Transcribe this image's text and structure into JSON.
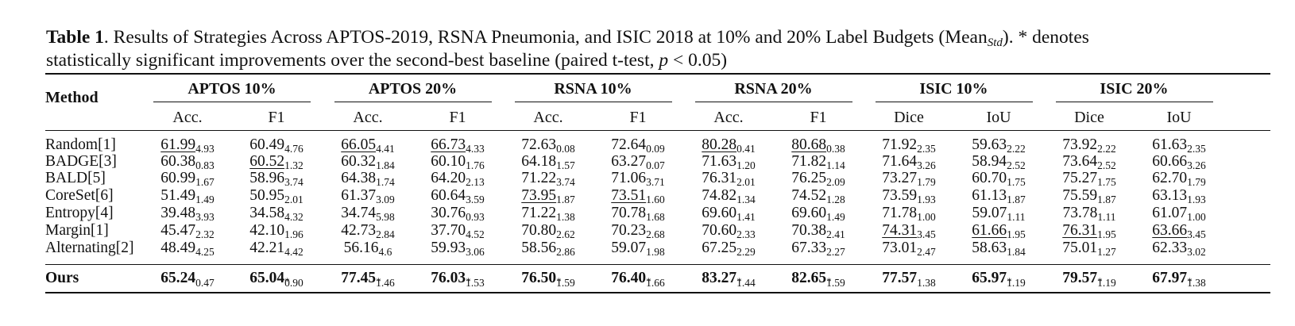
{
  "caption": {
    "label": "Table 1",
    "text1": ". Results of Strategies Across APTOS-2019, RSNA Pneumonia, and ISIC 2018 at 10% and 20% Label Budgets (Mean",
    "text1_sub": "Std",
    "text1_end": "). * denotes",
    "text2": "statistically significant improvements over the second-best baseline (paired t-test, ",
    "text2_var": "p",
    "text2_end": " < 0.05)"
  },
  "header": {
    "method": "Method",
    "groups": [
      "APTOS 10%",
      "APTOS 20%",
      "RSNA 10%",
      "RSNA 20%",
      "ISIC 10%",
      "ISIC 20%"
    ],
    "subheaders": [
      "Acc.",
      "F1",
      "Acc.",
      "F1",
      "Acc.",
      "F1",
      "Acc.",
      "F1",
      "Dice",
      "IoU",
      "Dice",
      "IoU"
    ]
  },
  "rows": [
    {
      "method": "Random[1]",
      "cells": [
        {
          "m": "61.99",
          "s": "4.93",
          "u": true
        },
        {
          "m": "60.49",
          "s": "4.76"
        },
        {
          "m": "66.05",
          "s": "4.41",
          "u": true
        },
        {
          "m": "66.73",
          "s": "4.33",
          "u": true
        },
        {
          "m": "72.63",
          "s": "0.08"
        },
        {
          "m": "72.64",
          "s": "0.09"
        },
        {
          "m": "80.28",
          "s": "0.41",
          "u": true
        },
        {
          "m": "80.68",
          "s": "0.38",
          "u": true
        },
        {
          "m": "71.92",
          "s": "2.35"
        },
        {
          "m": "59.63",
          "s": "2.22"
        },
        {
          "m": "73.92",
          "s": "2.22"
        },
        {
          "m": "61.63",
          "s": "2.35"
        }
      ]
    },
    {
      "method": "BADGE[3]",
      "cells": [
        {
          "m": "60.38",
          "s": "0.83"
        },
        {
          "m": "60.52",
          "s": "1.32",
          "u": true
        },
        {
          "m": "60.32",
          "s": "1.84"
        },
        {
          "m": "60.10",
          "s": "1.76"
        },
        {
          "m": "64.18",
          "s": "1.57"
        },
        {
          "m": "63.27",
          "s": "0.07"
        },
        {
          "m": "71.63",
          "s": "1.20"
        },
        {
          "m": "71.82",
          "s": "1.14"
        },
        {
          "m": "71.64",
          "s": "3.26"
        },
        {
          "m": "58.94",
          "s": "2.52"
        },
        {
          "m": "73.64",
          "s": "2.52"
        },
        {
          "m": "60.66",
          "s": "3.26"
        }
      ]
    },
    {
      "method": "BALD[5]",
      "cells": [
        {
          "m": "60.99",
          "s": "1.67"
        },
        {
          "m": "58.96",
          "s": "3.74"
        },
        {
          "m": "64.38",
          "s": "1.74"
        },
        {
          "m": "64.20",
          "s": "2.13"
        },
        {
          "m": "71.22",
          "s": "3.74"
        },
        {
          "m": "71.06",
          "s": "3.71"
        },
        {
          "m": "76.31",
          "s": "2.01"
        },
        {
          "m": "76.25",
          "s": "2.09"
        },
        {
          "m": "73.27",
          "s": "1.79"
        },
        {
          "m": "60.70",
          "s": "1.75"
        },
        {
          "m": "75.27",
          "s": "1.75"
        },
        {
          "m": "62.70",
          "s": "1.79"
        }
      ]
    },
    {
      "method": "CoreSet[6]",
      "cells": [
        {
          "m": "51.49",
          "s": "1.49"
        },
        {
          "m": "50.95",
          "s": "2.01"
        },
        {
          "m": "61.37",
          "s": "3.09"
        },
        {
          "m": "60.64",
          "s": "3.59"
        },
        {
          "m": "73.95",
          "s": "1.87",
          "u": true
        },
        {
          "m": "73.51",
          "s": "1.60",
          "u": true
        },
        {
          "m": "74.82",
          "s": "1.34"
        },
        {
          "m": "74.52",
          "s": "1.28"
        },
        {
          "m": "73.59",
          "s": "1.93"
        },
        {
          "m": "61.13",
          "s": "1.87"
        },
        {
          "m": "75.59",
          "s": "1.87"
        },
        {
          "m": "63.13",
          "s": "1.93"
        }
      ]
    },
    {
      "method": "Entropy[4]",
      "cells": [
        {
          "m": "39.48",
          "s": "3.93"
        },
        {
          "m": "34.58",
          "s": "4.32"
        },
        {
          "m": "34.74",
          "s": "5.98"
        },
        {
          "m": "30.76",
          "s": "0.93"
        },
        {
          "m": "71.22",
          "s": "1.38"
        },
        {
          "m": "70.78",
          "s": "1.68"
        },
        {
          "m": "69.60",
          "s": "1.41"
        },
        {
          "m": "69.60",
          "s": "1.49"
        },
        {
          "m": "71.78",
          "s": "1.00"
        },
        {
          "m": "59.07",
          "s": "1.11"
        },
        {
          "m": "73.78",
          "s": "1.11"
        },
        {
          "m": "61.07",
          "s": "1.00"
        }
      ]
    },
    {
      "method": "Margin[1]",
      "cells": [
        {
          "m": "45.47",
          "s": "2.32"
        },
        {
          "m": "42.10",
          "s": "1.96"
        },
        {
          "m": "42.73",
          "s": "2.84"
        },
        {
          "m": "37.70",
          "s": "4.52"
        },
        {
          "m": "70.80",
          "s": "2.62"
        },
        {
          "m": "70.23",
          "s": "2.68"
        },
        {
          "m": "70.60",
          "s": "2.33"
        },
        {
          "m": "70.38",
          "s": "2.41"
        },
        {
          "m": "74.31",
          "s": "3.45",
          "u": true
        },
        {
          "m": "61.66",
          "s": "1.95",
          "u": true
        },
        {
          "m": "76.31",
          "s": "1.95",
          "u": true
        },
        {
          "m": "63.66",
          "s": "3.45",
          "u": true
        }
      ]
    },
    {
      "method": "Alternating[2]",
      "cells": [
        {
          "m": "48.49",
          "s": "4.25"
        },
        {
          "m": "42.21",
          "s": "4.42"
        },
        {
          "m": "56.16",
          "s": "4.6"
        },
        {
          "m": "59.93",
          "s": "3.06"
        },
        {
          "m": "58.56",
          "s": "2.86"
        },
        {
          "m": "59.07",
          "s": "1.98"
        },
        {
          "m": "67.25",
          "s": "2.29"
        },
        {
          "m": "67.33",
          "s": "2.27"
        },
        {
          "m": "73.01",
          "s": "2.47"
        },
        {
          "m": "58.63",
          "s": "1.84"
        },
        {
          "m": "75.01",
          "s": "1.27"
        },
        {
          "m": "62.33",
          "s": "3.02"
        }
      ]
    }
  ],
  "ours": {
    "method": "Ours",
    "cells": [
      {
        "m": "65.24",
        "s": "0.47"
      },
      {
        "m": "65.04",
        "s": "0.90",
        "star": "*"
      },
      {
        "m": "77.45",
        "s": "1.46",
        "star": "*"
      },
      {
        "m": "76.03",
        "s": "1.53",
        "star": "*"
      },
      {
        "m": "76.50",
        "s": "1.59",
        "star": "*"
      },
      {
        "m": "76.40",
        "s": "1.66",
        "star": "*"
      },
      {
        "m": "83.27",
        "s": "1.44",
        "star": "*"
      },
      {
        "m": "82.65",
        "s": "1.59",
        "star": "*"
      },
      {
        "m": "77.57",
        "s": "1.38"
      },
      {
        "m": "65.97",
        "s": "1.19",
        "star": "*"
      },
      {
        "m": "79.57",
        "s": "1.19",
        "star": "*"
      },
      {
        "m": "67.97",
        "s": "1.38",
        "star": "*"
      }
    ]
  }
}
